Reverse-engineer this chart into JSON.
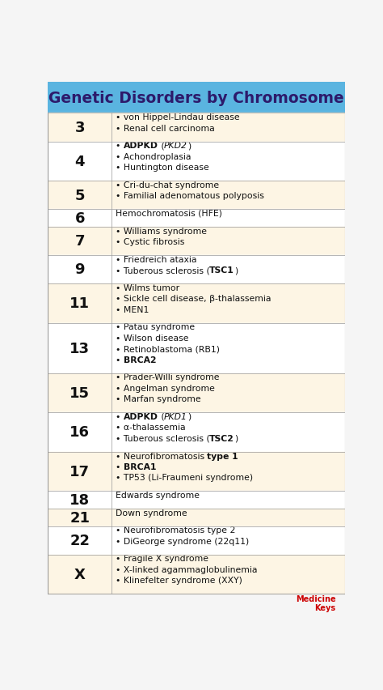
{
  "title": "Genetic Disorders by Chromosome",
  "title_color": "#2d1a6b",
  "title_bg": "#5ab4e0",
  "bg_color": "#f5f5f5",
  "cell_bg_light": "#fdf5e4",
  "cell_bg_white": "#ffffff",
  "border_color": "#999999",
  "chrom_color": "#111111",
  "text_color": "#111111",
  "rows": [
    {
      "chrom": "3",
      "bg": "#fdf5e4",
      "segments": [
        [
          [
            "• von Hippel-Lindau disease",
            "normal",
            "normal"
          ]
        ],
        [
          [
            "• Renal cell carcinoma",
            "normal",
            "normal"
          ]
        ]
      ]
    },
    {
      "chrom": "4",
      "bg": "#ffffff",
      "segments": [
        [
          [
            "• ",
            "normal",
            "normal"
          ],
          [
            "ADPKD",
            "bold",
            "normal"
          ],
          [
            " (",
            "normal",
            "normal"
          ],
          [
            "PKD2",
            "normal",
            "italic"
          ],
          [
            ")",
            "normal",
            "normal"
          ]
        ],
        [
          [
            "• Achondroplasia",
            "normal",
            "normal"
          ]
        ],
        [
          [
            "• Huntington disease",
            "normal",
            "normal"
          ]
        ]
      ]
    },
    {
      "chrom": "5",
      "bg": "#fdf5e4",
      "segments": [
        [
          [
            "• Cri-du-chat syndrome",
            "normal",
            "normal"
          ]
        ],
        [
          [
            "• Familial adenomatous polyposis",
            "normal",
            "normal"
          ]
        ]
      ]
    },
    {
      "chrom": "6",
      "bg": "#ffffff",
      "segments": [
        [
          [
            "Hemochromatosis (HFE)",
            "normal",
            "normal"
          ]
        ]
      ]
    },
    {
      "chrom": "7",
      "bg": "#fdf5e4",
      "segments": [
        [
          [
            "• Williams syndrome",
            "normal",
            "normal"
          ]
        ],
        [
          [
            "• Cystic fibrosis",
            "normal",
            "normal"
          ]
        ]
      ]
    },
    {
      "chrom": "9",
      "bg": "#ffffff",
      "segments": [
        [
          [
            "• Friedreich ataxia",
            "normal",
            "normal"
          ]
        ],
        [
          [
            "• Tuberous sclerosis (",
            "normal",
            "normal"
          ],
          [
            "TSC1",
            "bold",
            "normal"
          ],
          [
            ")",
            "normal",
            "normal"
          ]
        ]
      ]
    },
    {
      "chrom": "11",
      "bg": "#fdf5e4",
      "segments": [
        [
          [
            "• Wilms tumor",
            "normal",
            "normal"
          ]
        ],
        [
          [
            "• Sickle cell disease, β-thalassemia",
            "normal",
            "normal"
          ]
        ],
        [
          [
            "• MEN1",
            "normal",
            "normal"
          ]
        ]
      ]
    },
    {
      "chrom": "13",
      "bg": "#ffffff",
      "segments": [
        [
          [
            "• Patau syndrome",
            "normal",
            "normal"
          ]
        ],
        [
          [
            "• Wilson disease",
            "normal",
            "normal"
          ]
        ],
        [
          [
            "• Retinoblastoma (RB1)",
            "normal",
            "normal"
          ]
        ],
        [
          [
            "• ",
            "normal",
            "normal"
          ],
          [
            "BRCA2",
            "bold",
            "normal"
          ]
        ]
      ]
    },
    {
      "chrom": "15",
      "bg": "#fdf5e4",
      "segments": [
        [
          [
            "• Prader-Willi syndrome",
            "normal",
            "normal"
          ]
        ],
        [
          [
            "• Angelman syndrome",
            "normal",
            "normal"
          ]
        ],
        [
          [
            "• Marfan syndrome",
            "normal",
            "normal"
          ]
        ]
      ]
    },
    {
      "chrom": "16",
      "bg": "#ffffff",
      "segments": [
        [
          [
            "• ",
            "normal",
            "normal"
          ],
          [
            "ADPKD",
            "bold",
            "normal"
          ],
          [
            " (",
            "normal",
            "normal"
          ],
          [
            "PKD1",
            "normal",
            "italic"
          ],
          [
            ")",
            "normal",
            "normal"
          ]
        ],
        [
          [
            "• α-thalassemia",
            "normal",
            "normal"
          ]
        ],
        [
          [
            "• Tuberous sclerosis (",
            "normal",
            "normal"
          ],
          [
            "TSC2",
            "bold",
            "normal"
          ],
          [
            ")",
            "normal",
            "normal"
          ]
        ]
      ]
    },
    {
      "chrom": "17",
      "bg": "#fdf5e4",
      "segments": [
        [
          [
            "• Neurofibromatosis ",
            "normal",
            "normal"
          ],
          [
            "type 1",
            "bold",
            "normal"
          ]
        ],
        [
          [
            "• ",
            "normal",
            "normal"
          ],
          [
            "BRCA1",
            "bold",
            "normal"
          ]
        ],
        [
          [
            "• TP53 (Li-Fraumeni syndrome)",
            "normal",
            "normal"
          ]
        ]
      ]
    },
    {
      "chrom": "18",
      "bg": "#ffffff",
      "segments": [
        [
          [
            "Edwards syndrome",
            "normal",
            "normal"
          ]
        ]
      ]
    },
    {
      "chrom": "21",
      "bg": "#fdf5e4",
      "segments": [
        [
          [
            "Down syndrome",
            "normal",
            "normal"
          ]
        ]
      ]
    },
    {
      "chrom": "22",
      "bg": "#ffffff",
      "segments": [
        [
          [
            "• Neurofibromatosis type 2",
            "normal",
            "normal"
          ]
        ],
        [
          [
            "• DiGeorge syndrome (22q11)",
            "normal",
            "normal"
          ]
        ]
      ]
    },
    {
      "chrom": "X",
      "bg": "#fdf5e4",
      "segments": [
        [
          [
            "• Fragile X syndrome",
            "normal",
            "normal"
          ]
        ],
        [
          [
            "• X-linked agammaglobulinemia",
            "normal",
            "normal"
          ]
        ],
        [
          [
            "• Klinefelter syndrome (XXY)",
            "normal",
            "normal"
          ]
        ]
      ]
    }
  ],
  "col_split": 0.215,
  "footer_color": "#cc0000"
}
